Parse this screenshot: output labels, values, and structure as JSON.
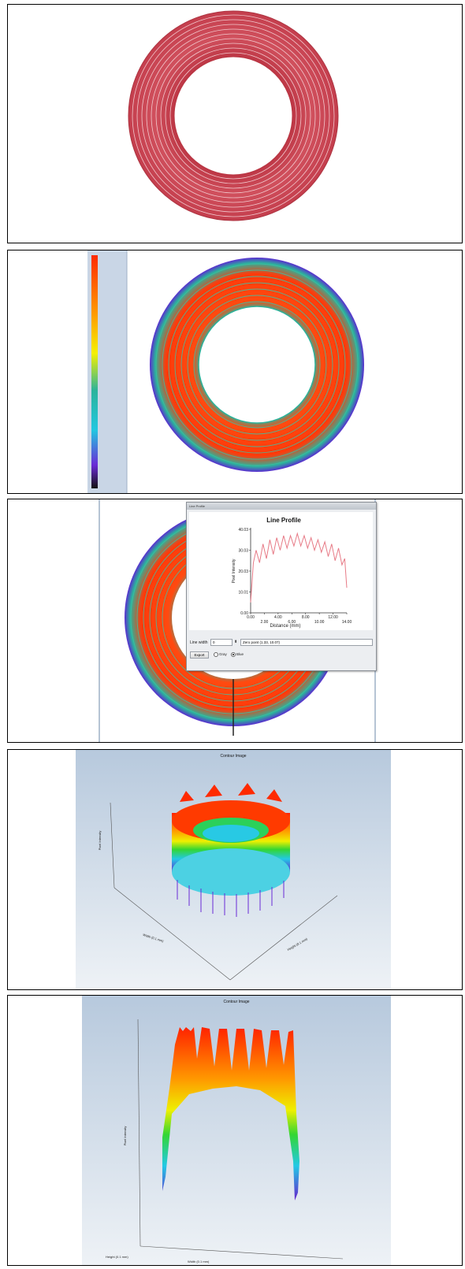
{
  "panels": {
    "photo": {},
    "intensity_map": {},
    "line_profile": {
      "window_title": "Line Profile",
      "plot_title": "Line Profile",
      "y_axis_label": "Pixel Intensity",
      "x_axis_label": "Distance (mm)",
      "y_ticks": [
        "0.00",
        "10.01",
        "20.03",
        "30.03",
        "40.03"
      ],
      "x_ticks": [
        "0.00",
        "2.00",
        "4.00",
        "6.00",
        "8.00",
        "10.00",
        "12.00",
        "14.00"
      ],
      "line_width_label": "Line width",
      "line_width_value": "0",
      "zero_point_label": "Zero point",
      "zero_point_value": "(1.33, 10.07)",
      "export_label": "Export",
      "radio_options": [
        {
          "label": "Gray",
          "selected": false
        },
        {
          "label": "Blue",
          "selected": true
        }
      ],
      "chart_data": {
        "type": "line",
        "title": "Line Profile",
        "xlabel": "Distance (mm)",
        "ylabel": "Pixel Intensity",
        "xlim": [
          0,
          14
        ],
        "ylim": [
          0,
          40
        ],
        "series": [
          {
            "x": [
              0.0,
              0.4,
              0.8,
              1.3,
              1.8,
              2.3,
              2.8,
              3.3,
              3.8,
              4.3,
              4.8,
              5.3,
              5.8,
              6.3,
              6.8,
              7.3,
              7.8,
              8.3,
              8.8,
              9.3,
              9.8,
              10.3,
              10.8,
              11.3,
              11.8,
              12.3,
              12.8,
              13.3,
              13.7,
              14.0
            ],
            "y": [
              5,
              24,
              30,
              24,
              33,
              26,
              35,
              28,
              36,
              30,
              37,
              31,
              37,
              32,
              38,
              32,
              37,
              31,
              36,
              30,
              35,
              29,
              34,
              27,
              33,
              25,
              31,
              23,
              26,
              12
            ]
          }
        ]
      }
    },
    "contour_3d": {
      "title": "Contour Image",
      "z_axis_label": "Pixel Intensity",
      "x_axis_label": "Width (0.1 mm)",
      "y_axis_label": "Height (0.1 mm)"
    },
    "contour_profile": {
      "title": "Contour Image",
      "z_axis_label": "Pixel Intensity",
      "x_axis_label": "Height (0.1 mm)",
      "y_axis_label": "Width (0.1 mm)"
    }
  },
  "colors": {
    "photo_ring": "#c8404f",
    "hot": "#f0320a",
    "warm": "#ff9900",
    "mid": "#2fb59a",
    "cool": "#25c2d6",
    "cold": "#5a2bd1"
  }
}
